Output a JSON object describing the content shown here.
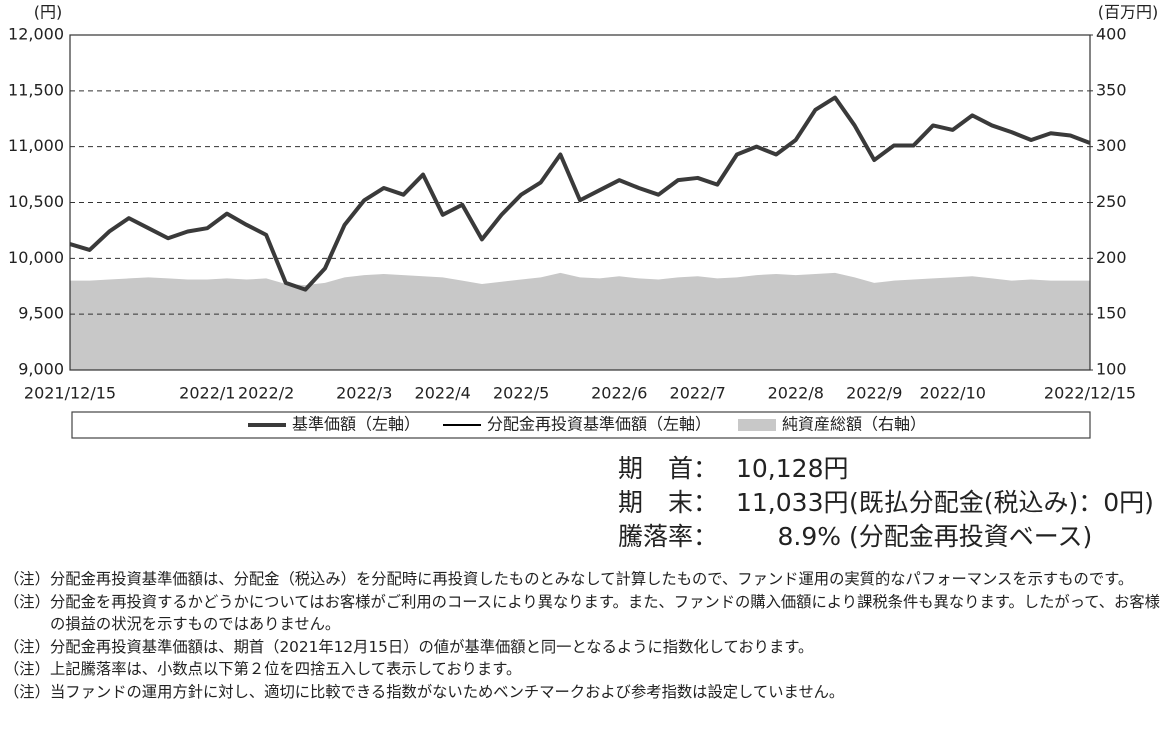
{
  "chart_data": {
    "type": "line",
    "y_unit": "(円)",
    "y2_unit": "(百万円)",
    "categories": [
      "2021/12/15",
      null,
      null,
      null,
      null,
      null,
      null,
      "2022/1",
      null,
      null,
      "2022/2",
      null,
      null,
      null,
      null,
      "2022/3",
      null,
      null,
      null,
      "2022/4",
      null,
      null,
      null,
      "2022/5",
      null,
      null,
      null,
      null,
      "2022/6",
      null,
      null,
      null,
      "2022/7",
      null,
      null,
      null,
      null,
      "2022/8",
      null,
      null,
      null,
      "2022/9",
      null,
      null,
      null,
      "2022/10",
      null,
      null,
      null,
      null,
      null,
      null,
      "2022/12/15"
    ],
    "series": [
      {
        "name": "純資産総額（右軸）",
        "type": "area",
        "axis": "y2",
        "color": "#c8c8c8",
        "values": [
          180,
          180,
          181,
          182,
          183,
          182,
          181,
          181,
          182,
          181,
          182,
          177,
          176,
          178,
          183,
          185,
          186,
          185,
          184,
          183,
          180,
          177,
          179,
          181,
          183,
          187,
          183,
          182,
          184,
          182,
          181,
          183,
          184,
          182,
          183,
          185,
          186,
          185,
          186,
          187,
          183,
          178,
          180,
          181,
          182,
          183,
          184,
          182,
          180,
          181,
          180,
          180,
          180
        ]
      },
      {
        "name": "分配金再投資基準価額（左軸）",
        "type": "line",
        "color": "#000000",
        "width": 2,
        "values": [
          10128,
          10075,
          10240,
          10360,
          10270,
          10180,
          10240,
          10270,
          10400,
          10300,
          10210,
          9780,
          9720,
          9910,
          10300,
          10520,
          10630,
          10570,
          10750,
          10390,
          10480,
          10170,
          10390,
          10570,
          10680,
          10930,
          10520,
          10610,
          10700,
          10630,
          10570,
          10700,
          10720,
          10660,
          10930,
          11000,
          10930,
          11060,
          11330,
          11440,
          11190,
          10880,
          11010,
          11010,
          11190,
          11150,
          11280,
          11190,
          11130,
          11060,
          11120,
          11100,
          11033
        ]
      },
      {
        "name": "基準価額（左軸）",
        "type": "line",
        "color": "#3a3a3a",
        "width": 4,
        "values": [
          10128,
          10075,
          10240,
          10360,
          10270,
          10180,
          10240,
          10270,
          10400,
          10300,
          10210,
          9780,
          9720,
          9910,
          10300,
          10520,
          10630,
          10570,
          10750,
          10390,
          10480,
          10170,
          10390,
          10570,
          10680,
          10930,
          10520,
          10610,
          10700,
          10630,
          10570,
          10700,
          10720,
          10660,
          10930,
          11000,
          10930,
          11060,
          11330,
          11440,
          11190,
          10880,
          11010,
          11010,
          11190,
          11150,
          11280,
          11190,
          11130,
          11060,
          11120,
          11100,
          11033
        ]
      }
    ],
    "legend_order": [
      2,
      1,
      0
    ],
    "ylim": [
      9000,
      12000
    ],
    "yticks": [
      {
        "value": 9000,
        "label": "9,000"
      },
      {
        "value": 9500,
        "label": "9,500"
      },
      {
        "value": 10000,
        "label": "10,000"
      },
      {
        "value": 10500,
        "label": "10,500"
      },
      {
        "value": 11000,
        "label": "11,000"
      },
      {
        "value": 11500,
        "label": "11,500"
      },
      {
        "value": 12000,
        "label": "12,000"
      }
    ],
    "y2lim": [
      100,
      400
    ],
    "y2ticks": [
      100,
      150,
      200,
      250,
      300,
      350,
      400
    ],
    "grid": true
  },
  "summary": [
    {
      "label": "期　首：",
      "value": "10,128円"
    },
    {
      "label": "期　末：",
      "value": "11,033円",
      "note": "(既払分配金(税込み)：0円)"
    },
    {
      "label": "騰落率：",
      "value": "8.9%",
      "note": "(分配金再投資ベース)"
    }
  ],
  "notes": [
    {
      "prefix": "（注）",
      "text": "分配金再投資基準価額は、分配金（税込み）を分配時に再投資したものとみなして計算したもので、ファンド運用の実質的なパフォーマンスを示すものです。"
    },
    {
      "prefix": "（注）",
      "text": "分配金を再投資するかどうかについてはお客様がご利用のコースにより異なります。また、ファンドの購入価額により課税条件も異なります。したがって、お客様の損益の状況を示すものではありません。"
    },
    {
      "prefix": "（注）",
      "text": "分配金再投資基準価額は、期首（2021年12月15日）の値が基準価額と同一となるように指数化しております。"
    },
    {
      "prefix": "（注）",
      "text": "上記騰落率は、小数点以下第２位を四捨五入して表示しております。"
    },
    {
      "prefix": "（注）",
      "text": "当ファンドの運用方針に対し、適切に比較できる指数がないためベンチマークおよび参考指数は設定していません。"
    }
  ]
}
